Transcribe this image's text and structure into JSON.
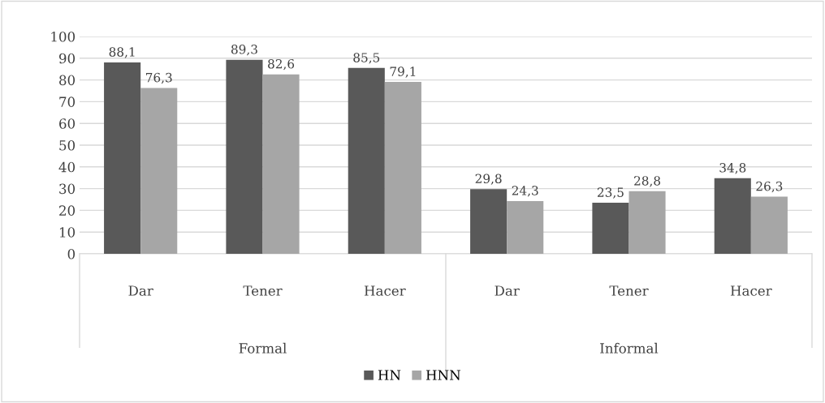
{
  "chart_data": {
    "type": "bar",
    "categories": [
      "Dar",
      "Tener",
      "Hacer",
      "Dar",
      "Tener",
      "Hacer"
    ],
    "series": [
      {
        "name": "HN",
        "color": "#595959",
        "values": [
          88.1,
          89.3,
          85.5,
          29.8,
          23.5,
          34.8
        ],
        "value_labels": [
          "88,1",
          "89,3",
          "85,5",
          "29,8",
          "23,5",
          "34,8"
        ]
      },
      {
        "name": "HNN",
        "color": "#a6a6a6",
        "values": [
          76.3,
          82.6,
          79.1,
          24.3,
          28.8,
          26.3
        ],
        "value_labels": [
          "76,3",
          "82,6",
          "79,1",
          "24,3",
          "28,8",
          "26,3"
        ]
      }
    ],
    "annotations": [
      "Formal",
      "Informal"
    ],
    "ylim": [
      0,
      100
    ],
    "yticks": [
      0,
      10,
      20,
      30,
      40,
      50,
      60,
      70,
      80,
      90,
      100
    ],
    "grid": "y",
    "legend": "bottom"
  }
}
